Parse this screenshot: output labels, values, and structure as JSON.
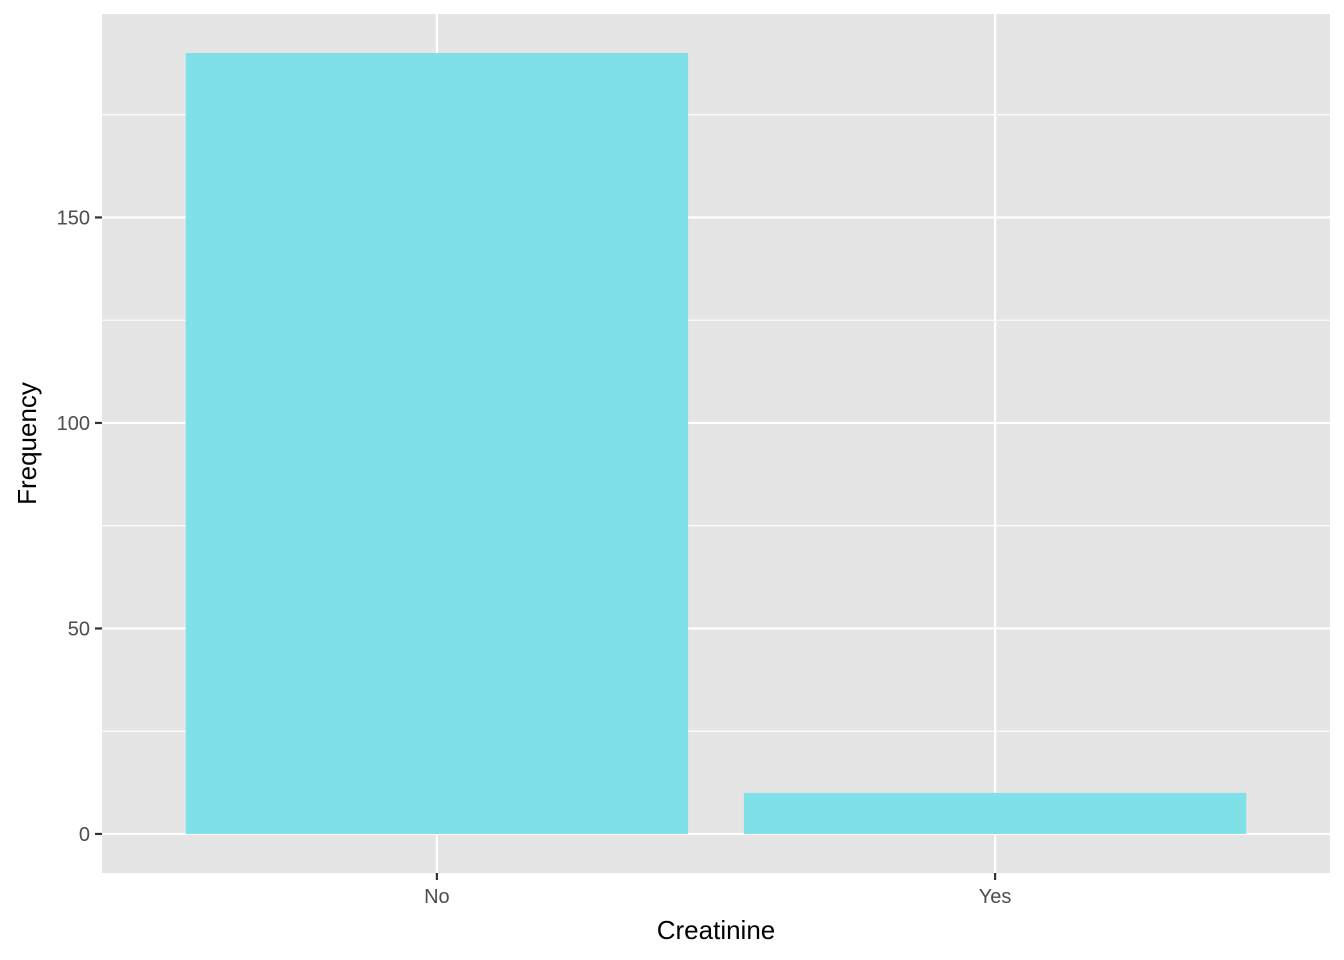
{
  "chart_data": {
    "type": "bar",
    "title": "",
    "xlabel": "Creatinine",
    "ylabel": "Frequency",
    "categories": [
      "No",
      "Yes"
    ],
    "values": [
      190,
      10
    ],
    "ylim": [
      -9.5,
      199.5
    ],
    "yticks": [
      0,
      50,
      100,
      150
    ],
    "ytick_labels": [
      "0",
      "50",
      "100",
      "150"
    ],
    "grid": true,
    "legend": "none",
    "colors": {
      "bar": "#80E0E8",
      "panel_background": "#E5E5E5",
      "grid": "#FFFFFF",
      "tick_text": "#4D4D4D",
      "tick_mark": "#333333"
    }
  }
}
